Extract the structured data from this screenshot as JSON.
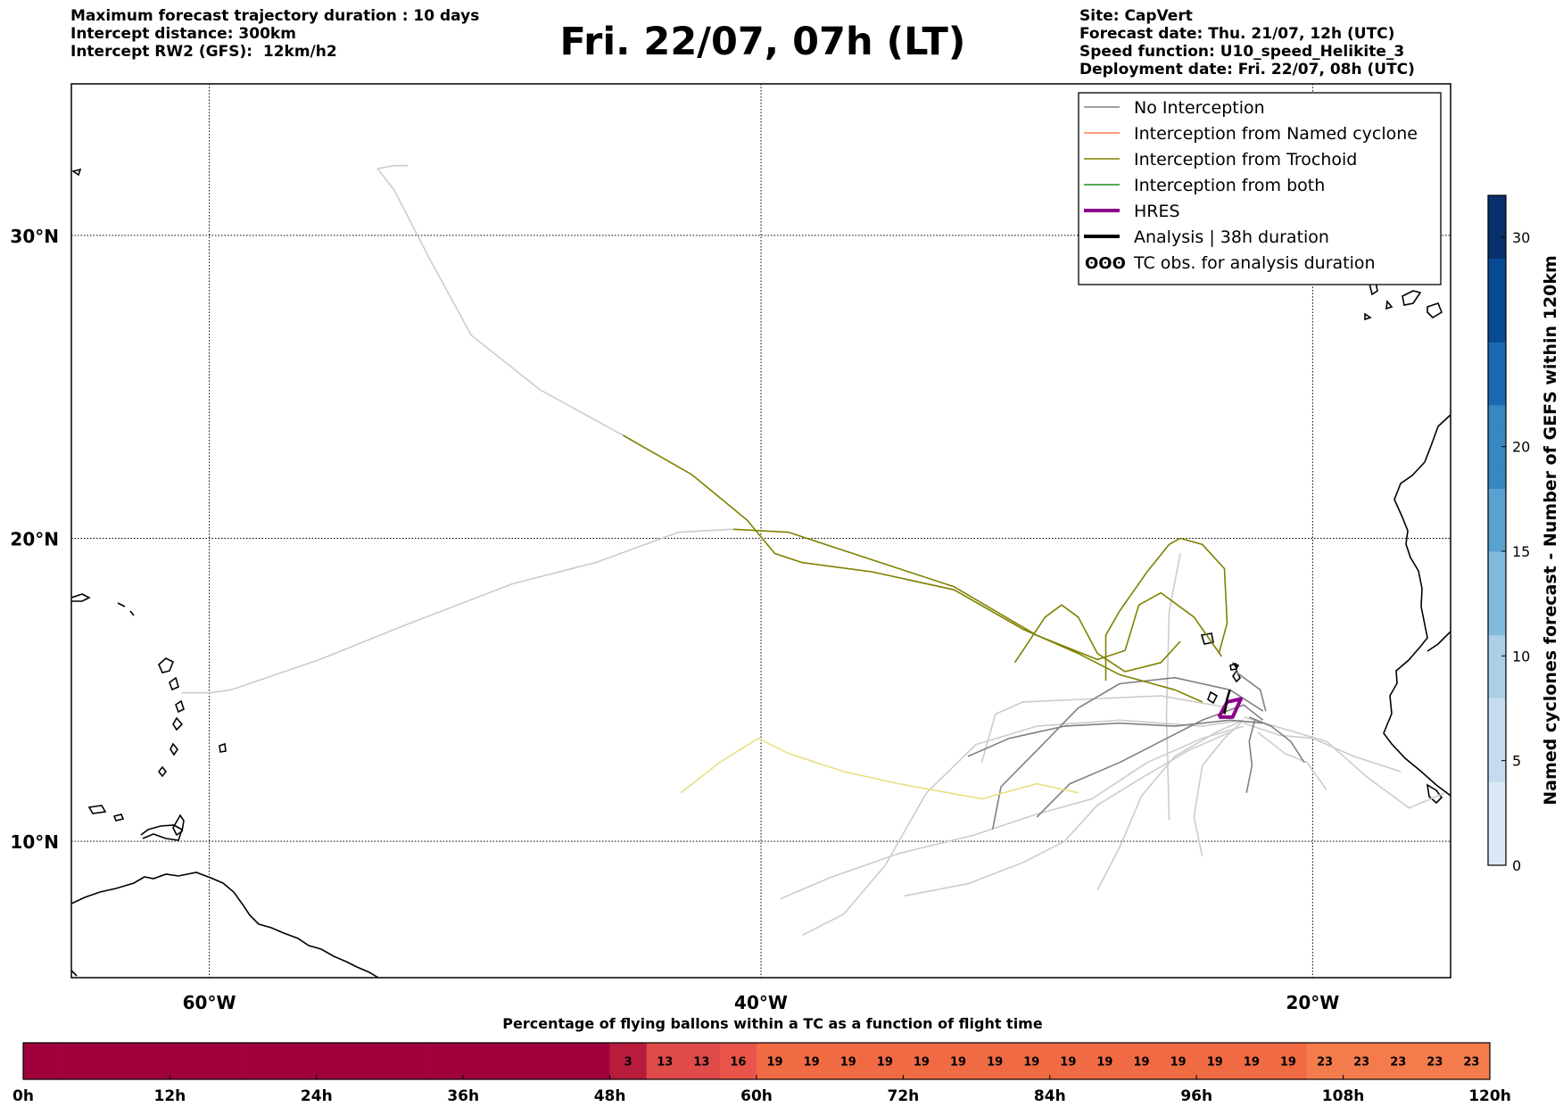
{
  "header_left": [
    "Maximum forecast trajectory duration : 10 days",
    "Intercept distance: 300km",
    "Intercept RW2 (GFS):  12km/h2"
  ],
  "title": "Fri. 22/07, 07h (LT)",
  "header_right": [
    "Site: CapVert",
    "Forecast date: Thu. 21/07, 12h (UTC)",
    "Speed function: U10_speed_Helikite_3",
    "Deployment date: Fri. 22/07, 08h (UTC)"
  ],
  "chart_data": [
    {
      "type": "map",
      "lon_range": [
        -65,
        -15
      ],
      "lat_range": [
        5.5,
        35
      ],
      "lon_ticks": [
        "60°W",
        "40°W",
        "20°W"
      ],
      "lat_ticks": [
        "30°N",
        "20°N",
        "10°N"
      ],
      "grid": true,
      "legend_position": "top-right",
      "legend": [
        {
          "label": "No Interception",
          "color": "#808080"
        },
        {
          "label": "Interception from Named cyclone",
          "color": "#ff7f50"
        },
        {
          "label": "Interception from Trochoid",
          "color": "#808000"
        },
        {
          "label": "Interception from both",
          "color": "#228b22"
        },
        {
          "label": "HRES",
          "color": "#8b008b"
        },
        {
          "label": "Analysis | 38h duration",
          "color": "#000000"
        },
        {
          "label": "TC obs. for analysis duration",
          "symbol": "ʘʘʘ",
          "color": "#000000"
        }
      ],
      "trajectories": [
        {
          "kind": "none",
          "color": "#cccccc",
          "points": [
            [
              -41,
              20.3
            ],
            [
              -43,
              20.2
            ],
            [
              -46,
              19.2
            ],
            [
              -49,
              18.5
            ],
            [
              -53,
              17.1
            ],
            [
              -56,
              16.0
            ],
            [
              -59.2,
              15.0
            ],
            [
              -60,
              14.9
            ],
            [
              -61,
              14.9
            ]
          ]
        },
        {
          "kind": "none",
          "color": "#cccccc",
          "points": [
            [
              -45,
              23.4
            ],
            [
              -48,
              24.9
            ],
            [
              -50.5,
              26.7
            ],
            [
              -52,
              29.2
            ],
            [
              -53.3,
              31.5
            ],
            [
              -53.9,
              32.2
            ],
            [
              -53.3,
              32.3
            ],
            [
              -52.8,
              32.3
            ]
          ]
        },
        {
          "kind": "trochoid",
          "color": "#808000",
          "points": [
            [
              -45,
              23.4
            ],
            [
              -42.5,
              22.1
            ],
            [
              -40.5,
              20.6
            ],
            [
              -39.5,
              19.5
            ],
            [
              -38.5,
              19.2
            ],
            [
              -36,
              18.9
            ],
            [
              -33,
              18.3
            ],
            [
              -30.5,
              17.0
            ],
            [
              -28.5,
              16.2
            ],
            [
              -27,
              15.5
            ],
            [
              -25,
              15.0
            ],
            [
              -24,
              14.6
            ]
          ]
        },
        {
          "kind": "trochoid",
          "color": "#808000",
          "points": [
            [
              -41,
              20.3
            ],
            [
              -39,
              20.2
            ],
            [
              -37,
              19.6
            ],
            [
              -33,
              18.4
            ],
            [
              -30,
              16.8
            ],
            [
              -27.8,
              16.0
            ],
            [
              -26.8,
              16.3
            ],
            [
              -26.3,
              17.8
            ],
            [
              -25.5,
              18.2
            ],
            [
              -24.3,
              17.4
            ],
            [
              -23.3,
              16.1
            ]
          ]
        },
        {
          "kind": "trochoid",
          "color": "#808000",
          "points": [
            [
              -27.5,
              15.3
            ],
            [
              -27.5,
              16.8
            ],
            [
              -27,
              17.6
            ],
            [
              -26,
              18.9
            ],
            [
              -25.2,
              19.8
            ],
            [
              -24.8,
              20.0
            ],
            [
              -24,
              19.8
            ],
            [
              -23.2,
              19.0
            ],
            [
              -23.1,
              17.2
            ],
            [
              -23.4,
              16.2
            ]
          ]
        },
        {
          "kind": "trochoid",
          "color": "#808000",
          "points": [
            [
              -30.8,
              15.9
            ],
            [
              -29.7,
              17.4
            ],
            [
              -29.1,
              17.8
            ],
            [
              -28.5,
              17.4
            ],
            [
              -27.8,
              16.2
            ],
            [
              -26.8,
              15.6
            ],
            [
              -25.5,
              15.9
            ],
            [
              -24.8,
              16.6
            ]
          ]
        },
        {
          "kind": "trochoid",
          "color": "#e8e080",
          "points": [
            [
              -42.9,
              11.6
            ],
            [
              -41.5,
              12.6
            ],
            [
              -40.1,
              13.4
            ],
            [
              -39,
              12.9
            ],
            [
              -37,
              12.3
            ],
            [
              -35,
              11.9
            ],
            [
              -32,
              11.4
            ],
            [
              -30,
              11.9
            ],
            [
              -28.5,
              11.6
            ]
          ]
        },
        {
          "kind": "none",
          "color": "#cccccc",
          "points": [
            [
              -39.3,
              8.1
            ],
            [
              -37.5,
              8.8
            ],
            [
              -35,
              9.6
            ],
            [
              -32.3,
              10.2
            ],
            [
              -30,
              10.9
            ],
            [
              -28,
              11.4
            ],
            [
              -26,
              12.6
            ],
            [
              -24,
              13.4
            ],
            [
              -22.5,
              13.8
            ]
          ]
        },
        {
          "kind": "none",
          "color": "#cccccc",
          "points": [
            [
              -38.5,
              6.9
            ],
            [
              -37,
              7.6
            ],
            [
              -35.5,
              9.2
            ],
            [
              -34,
              11.6
            ],
            [
              -32.2,
              13.2
            ],
            [
              -30,
              13.8
            ],
            [
              -27,
              14.0
            ],
            [
              -24,
              13.8
            ],
            [
              -22.5,
              14.0
            ]
          ]
        },
        {
          "kind": "none",
          "color": "#cccccc",
          "points": [
            [
              -34.8,
              8.2
            ],
            [
              -32.5,
              8.6
            ],
            [
              -30.5,
              9.3
            ],
            [
              -29,
              10.0
            ],
            [
              -27.8,
              11.2
            ],
            [
              -26,
              12.2
            ],
            [
              -24.5,
              13.0
            ],
            [
              -23,
              13.6
            ]
          ]
        },
        {
          "kind": "none",
          "color": "#cccccc",
          "points": [
            [
              -27.8,
              8.4
            ],
            [
              -27,
              9.8
            ],
            [
              -26.2,
              11.5
            ],
            [
              -25,
              12.8
            ],
            [
              -23.5,
              13.6
            ],
            [
              -22.5,
              14.0
            ]
          ]
        },
        {
          "kind": "none",
          "color": "#cccccc",
          "points": [
            [
              -24,
              9.5
            ],
            [
              -24.3,
              10.8
            ],
            [
              -24,
              12.5
            ],
            [
              -23.2,
              13.4
            ],
            [
              -22.5,
              14.0
            ]
          ]
        },
        {
          "kind": "none",
          "color": "#cccccc",
          "points": [
            [
              -16.8,
              12.3
            ],
            [
              -18.5,
              12.8
            ],
            [
              -20,
              13.4
            ],
            [
              -21.2,
              13.5
            ],
            [
              -22.5,
              13.9
            ]
          ]
        },
        {
          "kind": "none",
          "color": "#cccccc",
          "points": [
            [
              -15.2,
              11.6
            ],
            [
              -16.5,
              11.1
            ],
            [
              -18,
              12.1
            ],
            [
              -19.5,
              13.3
            ],
            [
              -21,
              13.7
            ],
            [
              -22.5,
              14.1
            ]
          ]
        },
        {
          "kind": "none",
          "color": "#cccccc",
          "points": [
            [
              -32,
              12.6
            ],
            [
              -31.5,
              14.2
            ],
            [
              -30.5,
              14.6
            ],
            [
              -28,
              14.7
            ],
            [
              -25.5,
              14.8
            ],
            [
              -23,
              14.4
            ]
          ]
        },
        {
          "kind": "none",
          "color": "#cccccc",
          "points": [
            [
              -19.5,
              11.7
            ],
            [
              -20.2,
              12.6
            ],
            [
              -21,
              12.9
            ],
            [
              -22,
              13.6
            ]
          ]
        },
        {
          "kind": "none",
          "color": "#cccccc",
          "points": [
            [
              -25.2,
              10.7
            ],
            [
              -25.3,
              14.2
            ],
            [
              -25.2,
              17.6
            ],
            [
              -24.8,
              19.5
            ]
          ]
        },
        {
          "kind": "none",
          "color": "#808080",
          "points": [
            [
              -31.6,
              10.4
            ],
            [
              -31.3,
              11.8
            ],
            [
              -30,
              13.0
            ],
            [
              -28.5,
              14.4
            ],
            [
              -27,
              15.2
            ],
            [
              -25,
              15.4
            ],
            [
              -23,
              15.0
            ],
            [
              -21.8,
              14.3
            ]
          ]
        },
        {
          "kind": "none",
          "color": "#808080",
          "points": [
            [
              -32.5,
              12.8
            ],
            [
              -31,
              13.4
            ],
            [
              -29,
              13.8
            ],
            [
              -27,
              13.9
            ],
            [
              -25,
              13.8
            ],
            [
              -23,
              14.0
            ],
            [
              -21.8,
              13.9
            ]
          ]
        },
        {
          "kind": "none",
          "color": "#808080",
          "points": [
            [
              -30,
              10.8
            ],
            [
              -28.8,
              11.9
            ],
            [
              -27,
              12.6
            ],
            [
              -25.5,
              13.3
            ],
            [
              -24,
              14.0
            ],
            [
              -22.5,
              14.5
            ],
            [
              -21.8,
              14.0
            ]
          ]
        },
        {
          "kind": "none",
          "color": "#808080",
          "points": [
            [
              -22.4,
              11.6
            ],
            [
              -22.2,
              12.5
            ],
            [
              -22.3,
              13.3
            ],
            [
              -22.1,
              14.0
            ]
          ]
        },
        {
          "kind": "none",
          "color": "#808080",
          "points": [
            [
              -20.3,
              12.6
            ],
            [
              -20.8,
              13.3
            ],
            [
              -21.5,
              13.8
            ],
            [
              -22.3,
              14.1
            ]
          ]
        },
        {
          "kind": "none",
          "color": "#808080",
          "points": [
            [
              -22.8,
              15.6
            ],
            [
              -21.9,
              15.0
            ],
            [
              -21.7,
              14.3
            ]
          ]
        },
        {
          "kind": "hres",
          "color": "#8b008b",
          "points": [
            [
              -23.4,
              14.1
            ],
            [
              -23.1,
              14.6
            ],
            [
              -22.6,
              14.7
            ],
            [
              -22.9,
              14.1
            ],
            [
              -23.4,
              14.1
            ]
          ]
        },
        {
          "kind": "analysis",
          "color": "#000000",
          "points": [
            [
              -23.2,
              14.2
            ],
            [
              -23.1,
              14.7
            ],
            [
              -23.0,
              15.0
            ]
          ]
        }
      ]
    },
    {
      "type": "heatmap",
      "title": "Percentage of flying ballons within a TC as a function of flight time",
      "x_ticks": [
        "0h",
        "12h",
        "24h",
        "36h",
        "48h",
        "60h",
        "72h",
        "84h",
        "96h",
        "108h",
        "120h"
      ],
      "x_range_hours": [
        0,
        120
      ],
      "bin_hours": 3,
      "values": [
        0,
        0,
        0,
        0,
        0,
        0,
        0,
        0,
        0,
        0,
        0,
        0,
        0,
        0,
        0,
        0,
        3,
        13,
        13,
        16,
        19,
        19,
        19,
        19,
        19,
        19,
        19,
        19,
        19,
        19,
        19,
        19,
        19,
        19,
        19,
        23,
        23,
        23,
        23,
        23
      ],
      "color_scale": "Reds"
    },
    {
      "type": "colorbar",
      "label": "Named cyclones forecast - Number of GEFS within 120km",
      "range": [
        0,
        32
      ],
      "ticks": [
        "0",
        "5",
        "10",
        "15",
        "20",
        "30"
      ],
      "color_scale": "Blues"
    }
  ]
}
